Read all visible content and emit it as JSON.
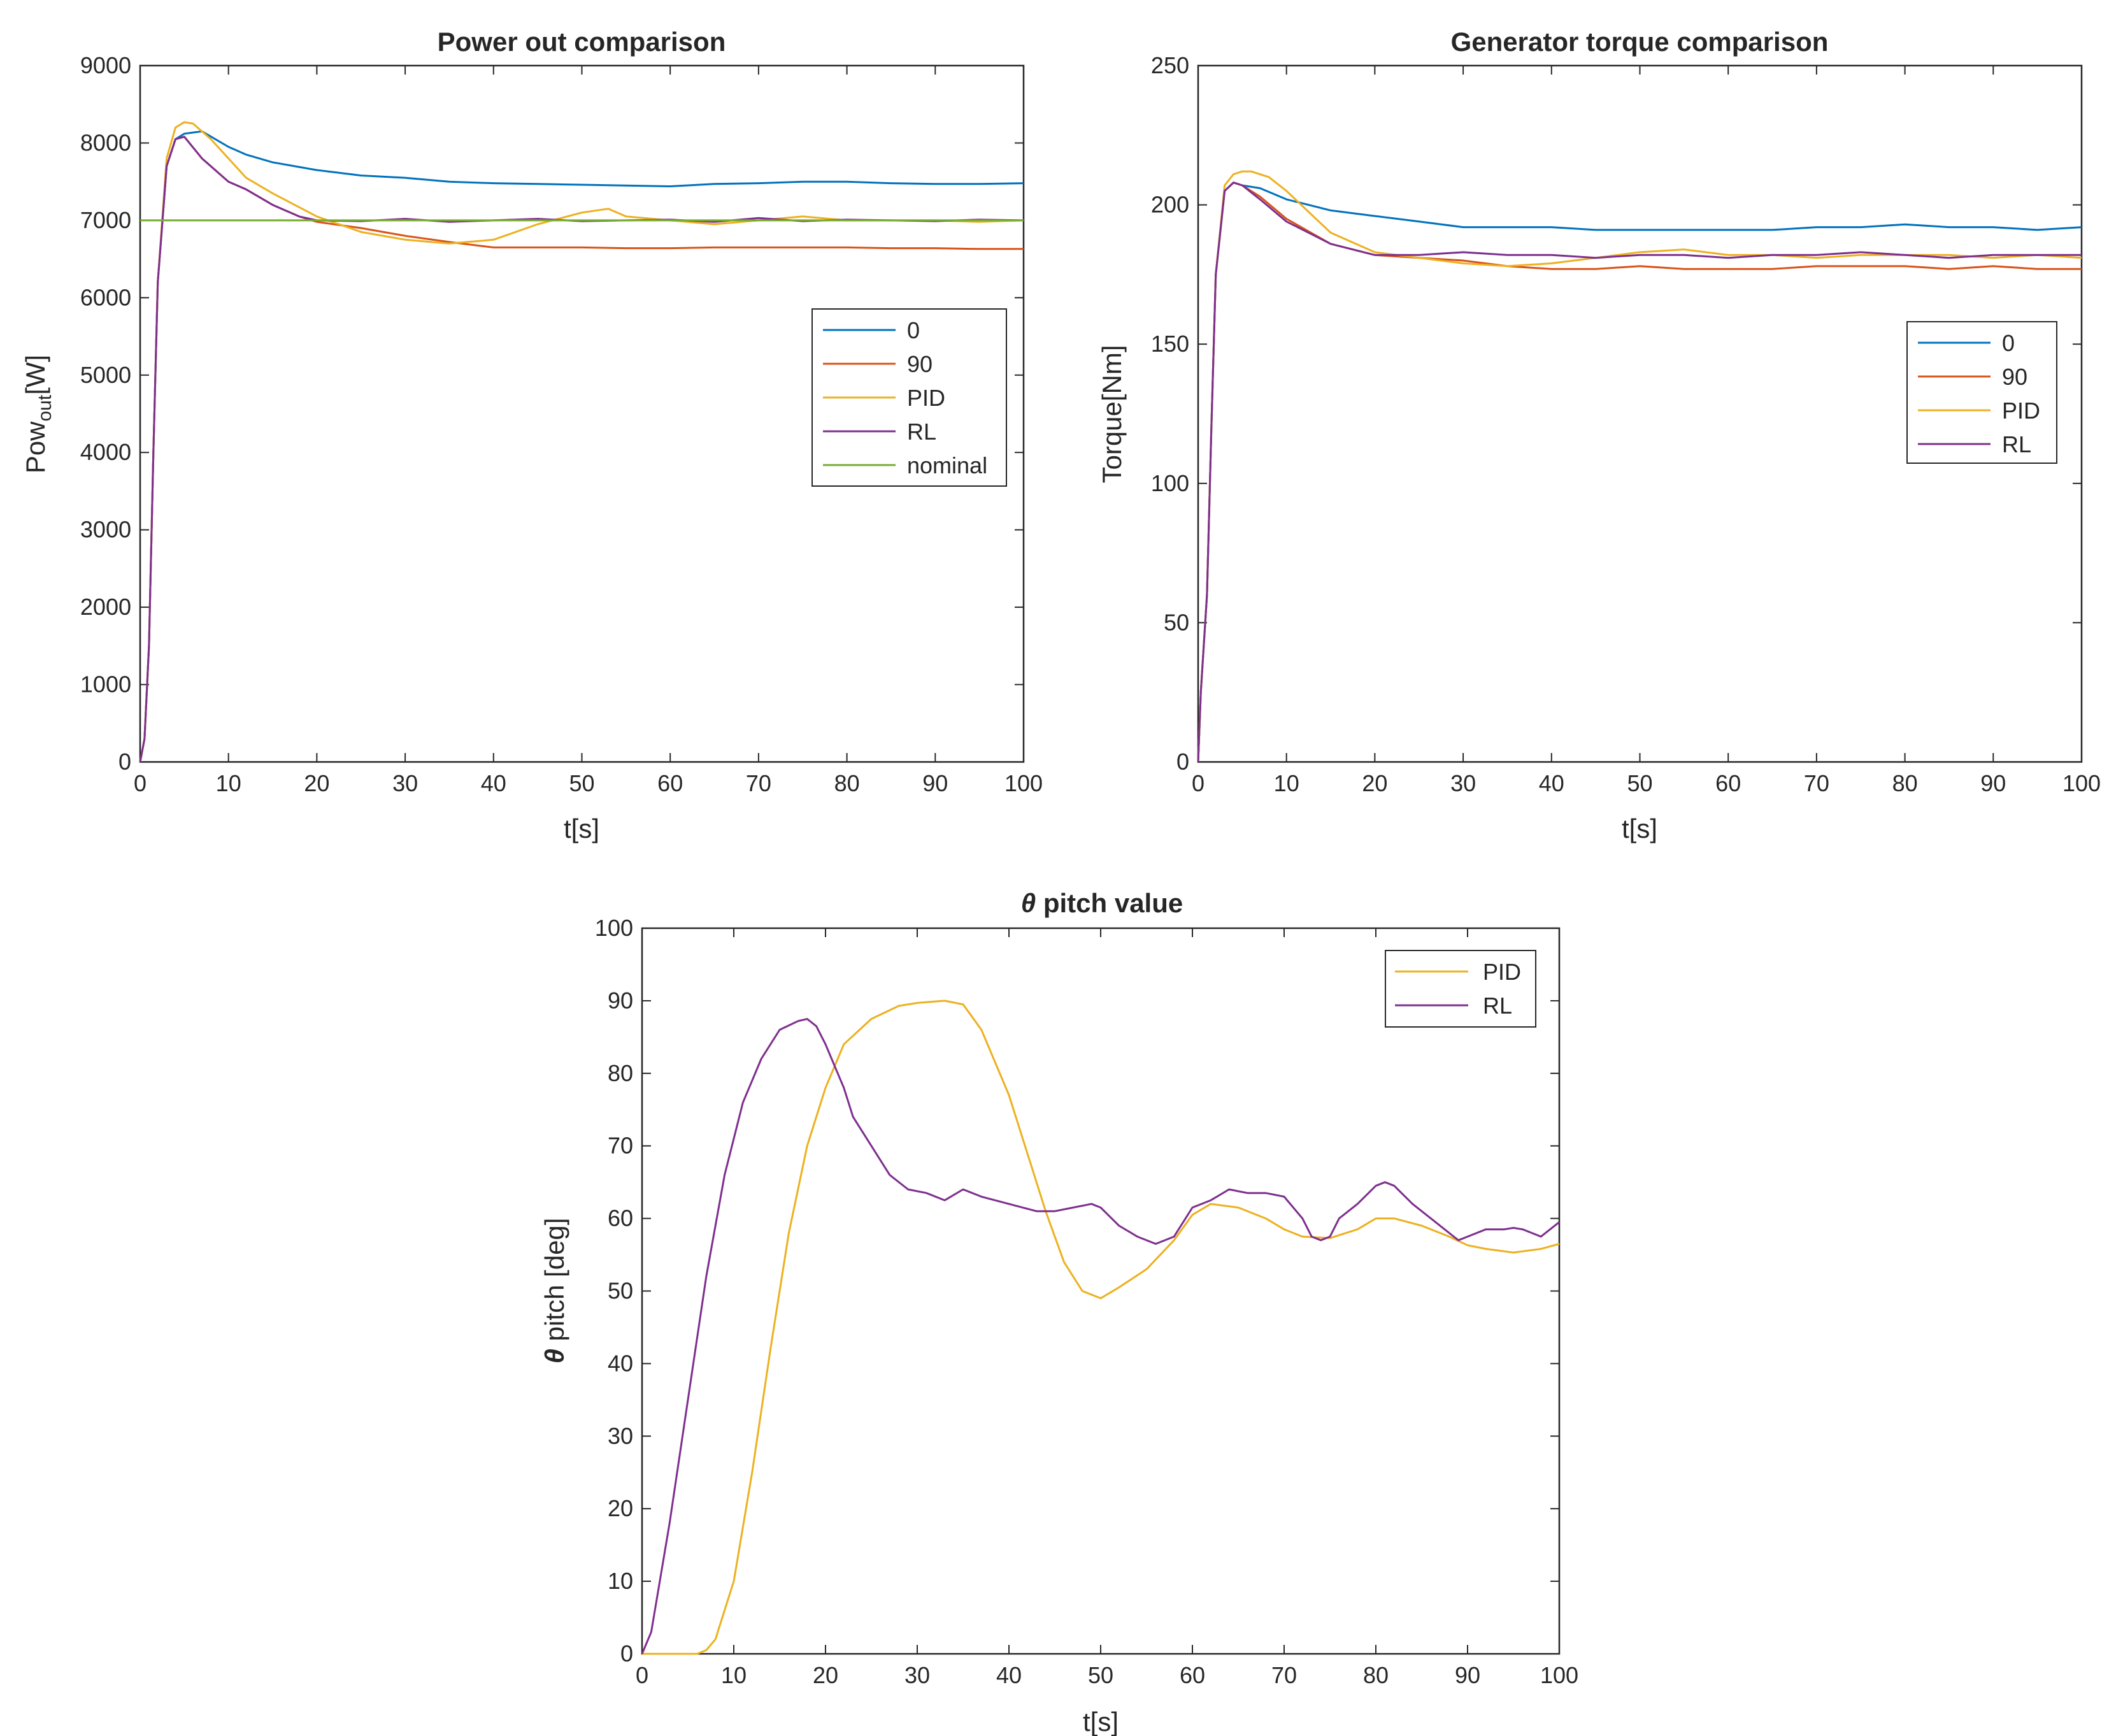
{
  "chart_data": [
    {
      "type": "line",
      "title": "Power out comparison",
      "xlabel": "t[s]",
      "ylabel": "Pow",
      "ylabel_sub": "out",
      "ylabel_suffix": "[W]",
      "xlim": [
        0,
        100
      ],
      "ylim": [
        0,
        9000
      ],
      "xticks": [
        0,
        10,
        20,
        30,
        40,
        50,
        60,
        70,
        80,
        90,
        100
      ],
      "yticks": [
        0,
        1000,
        2000,
        3000,
        4000,
        5000,
        6000,
        7000,
        8000,
        9000
      ],
      "legend_position": "right-middle",
      "series": [
        {
          "name": "0",
          "color": "#0072BD",
          "x": [
            0,
            0.5,
            1,
            1.5,
            2,
            3,
            4,
            5,
            7,
            10,
            12,
            15,
            20,
            25,
            30,
            35,
            40,
            45,
            50,
            55,
            60,
            65,
            70,
            75,
            80,
            85,
            90,
            95,
            100
          ],
          "y": [
            0,
            300,
            1500,
            4000,
            6200,
            7700,
            8050,
            8120,
            8150,
            7950,
            7850,
            7750,
            7650,
            7580,
            7550,
            7500,
            7480,
            7470,
            7460,
            7450,
            7440,
            7470,
            7480,
            7500,
            7500,
            7480,
            7470,
            7470,
            7480
          ]
        },
        {
          "name": "90",
          "color": "#D95319",
          "x": [
            0,
            0.5,
            1,
            1.5,
            2,
            3,
            4,
            5,
            7,
            10,
            12,
            15,
            18,
            20,
            25,
            30,
            35,
            40,
            45,
            50,
            55,
            60,
            65,
            70,
            75,
            80,
            85,
            90,
            95,
            100
          ],
          "y": [
            0,
            300,
            1500,
            4000,
            6200,
            7700,
            8050,
            8080,
            7800,
            7500,
            7400,
            7200,
            7050,
            6980,
            6900,
            6800,
            6720,
            6650,
            6650,
            6650,
            6640,
            6640,
            6650,
            6650,
            6650,
            6650,
            6640,
            6640,
            6630,
            6630
          ]
        },
        {
          "name": "PID",
          "color": "#EDB120",
          "x": [
            0,
            0.5,
            1,
            1.5,
            2,
            3,
            4,
            5,
            6,
            8,
            10,
            12,
            15,
            20,
            25,
            30,
            35,
            40,
            45,
            50,
            53,
            55,
            60,
            65,
            70,
            75,
            80,
            85,
            90,
            95,
            100
          ],
          "y": [
            0,
            300,
            1500,
            4000,
            6200,
            7800,
            8200,
            8270,
            8250,
            8050,
            7800,
            7550,
            7350,
            7050,
            6850,
            6750,
            6700,
            6750,
            6950,
            7100,
            7150,
            7050,
            7000,
            6950,
            7000,
            7050,
            7000,
            7000,
            7000,
            6980,
            7000
          ]
        },
        {
          "name": "RL",
          "color": "#7E2F8E",
          "x": [
            0,
            0.5,
            1,
            1.5,
            2,
            3,
            4,
            5,
            7,
            10,
            12,
            15,
            18,
            20,
            25,
            30,
            35,
            40,
            45,
            50,
            55,
            60,
            65,
            70,
            75,
            80,
            85,
            90,
            95,
            100
          ],
          "y": [
            0,
            300,
            1500,
            4000,
            6200,
            7700,
            8050,
            8080,
            7800,
            7500,
            7400,
            7200,
            7050,
            7000,
            6990,
            7020,
            6980,
            7000,
            7020,
            6990,
            7000,
            7010,
            6980,
            7030,
            6990,
            7010,
            7000,
            6990,
            7010,
            7000
          ]
        },
        {
          "name": "nominal",
          "color": "#77AC30",
          "x": [
            0,
            100
          ],
          "y": [
            7000,
            7000
          ]
        }
      ]
    },
    {
      "type": "line",
      "title": "Generator torque comparison",
      "xlabel": "t[s]",
      "ylabel": "Torque[Nm]",
      "xlim": [
        0,
        100
      ],
      "ylim": [
        0,
        250
      ],
      "xticks": [
        0,
        10,
        20,
        30,
        40,
        50,
        60,
        70,
        80,
        90,
        100
      ],
      "yticks": [
        0,
        50,
        100,
        150,
        200,
        250
      ],
      "legend_position": "right-middle",
      "series": [
        {
          "name": "0",
          "color": "#0072BD",
          "x": [
            0,
            0.3,
            1,
            1.5,
            2,
            3,
            4,
            5,
            7,
            10,
            15,
            20,
            25,
            30,
            35,
            40,
            45,
            50,
            55,
            60,
            65,
            70,
            75,
            80,
            85,
            90,
            95,
            100
          ],
          "y": [
            0,
            25,
            60,
            120,
            175,
            205,
            208,
            207,
            206,
            202,
            198,
            196,
            194,
            192,
            192,
            192,
            191,
            191,
            191,
            191,
            191,
            192,
            192,
            193,
            192,
            192,
            191,
            192
          ]
        },
        {
          "name": "90",
          "color": "#D95319",
          "x": [
            0,
            0.3,
            1,
            1.5,
            2,
            3,
            4,
            5,
            7,
            10,
            15,
            20,
            25,
            30,
            35,
            40,
            45,
            50,
            55,
            60,
            65,
            70,
            75,
            80,
            85,
            90,
            95,
            100
          ],
          "y": [
            0,
            25,
            60,
            120,
            175,
            205,
            208,
            207,
            203,
            195,
            186,
            182,
            181,
            180,
            178,
            177,
            177,
            178,
            177,
            177,
            177,
            178,
            178,
            178,
            177,
            178,
            177,
            177
          ]
        },
        {
          "name": "PID",
          "color": "#EDB120",
          "x": [
            0,
            0.3,
            1,
            1.5,
            2,
            3,
            4,
            5,
            6,
            8,
            10,
            15,
            20,
            25,
            30,
            35,
            40,
            45,
            50,
            55,
            60,
            65,
            70,
            75,
            80,
            85,
            90,
            95,
            100
          ],
          "y": [
            0,
            25,
            60,
            120,
            175,
            207,
            211,
            212,
            212,
            210,
            205,
            190,
            183,
            181,
            179,
            178,
            179,
            181,
            183,
            184,
            182,
            182,
            181,
            182,
            182,
            182,
            181,
            182,
            181
          ]
        },
        {
          "name": "RL",
          "color": "#7E2F8E",
          "x": [
            0,
            0.3,
            1,
            1.5,
            2,
            3,
            4,
            5,
            7,
            10,
            15,
            20,
            25,
            30,
            35,
            40,
            45,
            50,
            55,
            60,
            65,
            70,
            75,
            80,
            85,
            90,
            95,
            100
          ],
          "y": [
            0,
            25,
            60,
            120,
            175,
            205,
            208,
            207,
            202,
            194,
            186,
            182,
            182,
            183,
            182,
            182,
            181,
            182,
            182,
            181,
            182,
            182,
            183,
            182,
            181,
            182,
            182,
            182
          ]
        }
      ]
    },
    {
      "type": "line",
      "title": "θ pitch value",
      "title_symbol": "θ",
      "title_text": " pitch value",
      "xlabel": "t[s]",
      "ylabel": "θ pitch [deg]",
      "ylabel_symbol": "θ",
      "ylabel_text": " pitch [deg]",
      "xlim": [
        0,
        100
      ],
      "ylim": [
        0,
        100
      ],
      "xticks": [
        0,
        10,
        20,
        30,
        40,
        50,
        60,
        70,
        80,
        90,
        100
      ],
      "yticks": [
        0,
        10,
        20,
        30,
        40,
        50,
        60,
        70,
        80,
        90,
        100
      ],
      "legend_position": "top-right",
      "series": [
        {
          "name": "PID",
          "color": "#EDB120",
          "x": [
            0,
            3,
            6,
            7,
            8,
            10,
            12,
            14,
            16,
            18,
            20,
            22,
            25,
            28,
            30,
            33,
            35,
            37,
            40,
            42,
            44,
            46,
            48,
            50,
            52,
            55,
            58,
            60,
            62,
            65,
            68,
            70,
            72,
            75,
            78,
            80,
            82,
            85,
            88,
            90,
            92,
            95,
            98,
            100
          ],
          "y": [
            0,
            0,
            0,
            0.5,
            2,
            10,
            25,
            42,
            58,
            70,
            78,
            84,
            87.5,
            89.3,
            89.7,
            90,
            89.5,
            86,
            77,
            69,
            61,
            54,
            50,
            49,
            50.5,
            53,
            57,
            60.5,
            62,
            61.5,
            60,
            58.5,
            57.5,
            57.3,
            58.5,
            60,
            60,
            59,
            57.5,
            56.3,
            55.8,
            55.3,
            55.8,
            56.5
          ]
        },
        {
          "name": "RL",
          "color": "#7E2F8E",
          "x": [
            0,
            1,
            3,
            5,
            7,
            9,
            11,
            13,
            15,
            17,
            18,
            19,
            20,
            21,
            22,
            23,
            24,
            25,
            27,
            29,
            31,
            33,
            35,
            37,
            40,
            43,
            45,
            47,
            49,
            50,
            52,
            54,
            56,
            58,
            60,
            62,
            64,
            66,
            68,
            70,
            72,
            73,
            74,
            75,
            76,
            78,
            80,
            81,
            82,
            84,
            86,
            88,
            89,
            90,
            92,
            94,
            95,
            96,
            97,
            98,
            100
          ],
          "y": [
            0,
            3,
            18,
            35,
            52,
            66,
            76,
            82,
            86,
            87.2,
            87.5,
            86.5,
            84,
            81,
            78,
            74,
            72,
            70,
            66,
            64,
            63.5,
            62.5,
            64,
            63,
            62,
            61,
            61,
            61.5,
            62,
            61.5,
            59,
            57.5,
            56.5,
            57.5,
            61.5,
            62.5,
            64,
            63.5,
            63.5,
            63,
            60,
            57.5,
            57,
            57.5,
            60,
            62,
            64.5,
            65,
            64.5,
            62,
            60,
            58,
            57,
            57.5,
            58.5,
            58.5,
            58.7,
            58.5,
            58,
            57.5,
            59.5
          ]
        }
      ]
    }
  ]
}
